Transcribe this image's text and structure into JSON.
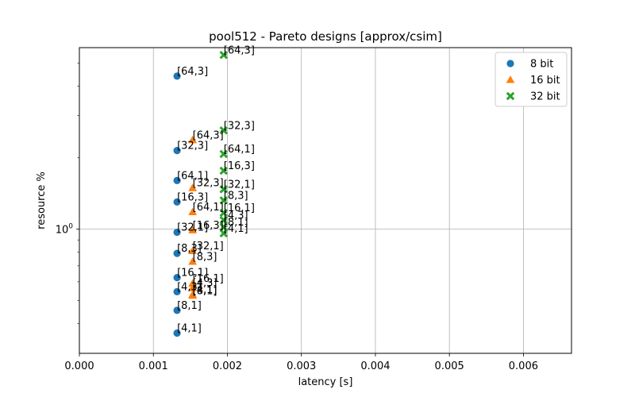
{
  "chart_data": {
    "type": "scatter",
    "title": "pool512 - Pareto designs [approx/csim]",
    "xlabel": "latency [s]",
    "ylabel": "resource %",
    "xlim": [
      0.0,
      0.00665
    ],
    "ylim": [
      0.3,
      5.8
    ],
    "yscale": "log",
    "grid": true,
    "legend_position": "top-right",
    "x_ticks": [
      {
        "value": 0.0,
        "label": "0.000"
      },
      {
        "value": 0.001,
        "label": "0.001"
      },
      {
        "value": 0.002,
        "label": "0.002"
      },
      {
        "value": 0.003,
        "label": "0.003"
      },
      {
        "value": 0.004,
        "label": "0.004"
      },
      {
        "value": 0.005,
        "label": "0.005"
      },
      {
        "value": 0.006,
        "label": "0.006"
      }
    ],
    "y_major_ticks": [
      {
        "value": 1,
        "label": "10"
      }
    ],
    "y_major_exponent": "0",
    "y_minor_ticks": [
      0.4,
      0.5,
      0.6,
      0.7,
      0.8,
      0.9,
      2,
      3,
      4,
      5
    ],
    "series": [
      {
        "name": "8 bit",
        "marker": "circle",
        "color": "#1f77b4",
        "points": [
          {
            "x": 0.00132,
            "y": 4.4,
            "label": "[64,3]"
          },
          {
            "x": 0.00132,
            "y": 2.14,
            "label": "[32,3]"
          },
          {
            "x": 0.00132,
            "y": 1.6,
            "label": "[64,1]"
          },
          {
            "x": 0.00132,
            "y": 1.3,
            "label": "[16,3]"
          },
          {
            "x": 0.00132,
            "y": 0.97,
            "label": "[32,1]"
          },
          {
            "x": 0.00132,
            "y": 0.79,
            "label": "[8,3]"
          },
          {
            "x": 0.00132,
            "y": 0.625,
            "label": "[16,1]"
          },
          {
            "x": 0.00132,
            "y": 0.545,
            "label": "[4,3]"
          },
          {
            "x": 0.00132,
            "y": 0.455,
            "label": "[8,1]"
          },
          {
            "x": 0.00132,
            "y": 0.365,
            "label": "[4,1]"
          }
        ]
      },
      {
        "name": "16 bit",
        "marker": "triangle",
        "color": "#ff7f0e",
        "points": [
          {
            "x": 0.00153,
            "y": 2.37,
            "label": "[64,3]"
          },
          {
            "x": 0.00153,
            "y": 1.49,
            "label": "[32,3]"
          },
          {
            "x": 0.00153,
            "y": 1.18,
            "label": "[64,1]"
          },
          {
            "x": 0.00153,
            "y": 0.99,
            "label": "[16,3]"
          },
          {
            "x": 0.00153,
            "y": 0.81,
            "label": "[32,1]"
          },
          {
            "x": 0.00153,
            "y": 0.73,
            "label": "[8,3]"
          },
          {
            "x": 0.00153,
            "y": 0.59,
            "label": "[16,1]"
          },
          {
            "x": 0.00153,
            "y": 0.565,
            "label": "[4,3]"
          },
          {
            "x": 0.00153,
            "y": 0.525,
            "label": "[8,1]"
          },
          {
            "x": 0.00153,
            "y": 0.53,
            "label": "[4,1]"
          }
        ]
      },
      {
        "name": "32 bit",
        "marker": "x",
        "color": "#2ca02c",
        "points": [
          {
            "x": 0.00195,
            "y": 5.4,
            "label": "[64,3]"
          },
          {
            "x": 0.00195,
            "y": 2.6,
            "label": "[32,3]"
          },
          {
            "x": 0.00195,
            "y": 2.07,
            "label": "[64,1]"
          },
          {
            "x": 0.00195,
            "y": 1.76,
            "label": "[16,3]"
          },
          {
            "x": 0.00195,
            "y": 1.47,
            "label": "[32,1]"
          },
          {
            "x": 0.00195,
            "y": 1.32,
            "label": "[8,3]"
          },
          {
            "x": 0.00195,
            "y": 1.17,
            "label": "[16,1]"
          },
          {
            "x": 0.00195,
            "y": 1.09,
            "label": "[4,3]"
          },
          {
            "x": 0.00195,
            "y": 1.02,
            "label": "[8,1]"
          },
          {
            "x": 0.00195,
            "y": 0.96,
            "label": "[4,1]"
          }
        ]
      }
    ]
  }
}
